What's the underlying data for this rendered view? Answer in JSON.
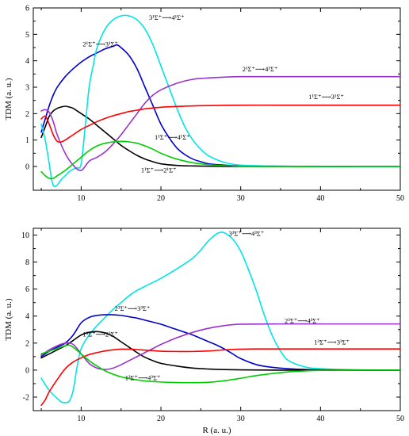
{
  "chart_data": [
    {
      "type": "line",
      "xlabel": "",
      "ylabel": "TDM (a. u.)",
      "xlim": [
        4,
        50
      ],
      "ylim": [
        -0.9,
        6
      ],
      "xticks": [
        "10",
        "20",
        "30",
        "40",
        "50"
      ],
      "yticks": [
        "0",
        "1",
        "2",
        "3",
        "4",
        "5",
        "6"
      ],
      "grid": false,
      "series": [
        {
          "id": "s1",
          "label": "1¹Σ⁺⟶2¹Σ⁺",
          "color": "#000000",
          "x": [
            5,
            5.5,
            6,
            6.5,
            7,
            7.5,
            8,
            8.5,
            9,
            10,
            11,
            12,
            13,
            14,
            15,
            16,
            17,
            18,
            19,
            20,
            22,
            24,
            26,
            28,
            30,
            35,
            40,
            45,
            50
          ],
          "y": [
            1.1,
            1.5,
            1.9,
            2.1,
            2.2,
            2.25,
            2.28,
            2.25,
            2.2,
            2.0,
            1.8,
            1.55,
            1.3,
            1.05,
            0.8,
            0.6,
            0.42,
            0.28,
            0.18,
            0.1,
            0.04,
            0.02,
            0.01,
            0,
            0,
            0,
            0,
            0,
            0
          ]
        },
        {
          "id": "s2",
          "label": "2¹Σ⁺⟶3¹Σ⁺",
          "color": "#0000cc",
          "x": [
            5,
            5.5,
            6,
            6.5,
            7,
            8,
            9,
            10,
            11,
            12,
            13,
            14,
            14.5,
            15,
            16,
            17,
            18,
            19,
            20,
            21,
            22,
            23,
            24,
            25,
            26,
            28,
            30,
            35,
            40,
            45,
            50
          ],
          "y": [
            1.3,
            1.8,
            2.3,
            2.7,
            3.0,
            3.4,
            3.7,
            3.95,
            4.15,
            4.3,
            4.45,
            4.55,
            4.6,
            4.5,
            4.2,
            3.7,
            3.0,
            2.3,
            1.6,
            1.1,
            0.7,
            0.45,
            0.28,
            0.18,
            0.1,
            0.05,
            0.02,
            0.01,
            0,
            0,
            0
          ]
        },
        {
          "id": "s3",
          "label": "3¹Σ⁺⟶4¹Σ⁺",
          "color": "#00e5e5",
          "x": [
            5,
            5.5,
            6,
            6.3,
            6.6,
            7,
            7.5,
            8,
            8.5,
            9,
            9.5,
            10,
            10.5,
            11,
            11.5,
            12,
            13,
            14,
            15,
            16,
            17,
            18,
            19,
            20,
            21,
            22,
            23,
            24,
            25,
            26,
            28,
            30,
            33,
            35,
            38,
            40,
            45,
            50
          ],
          "y": [
            1.6,
            1.0,
            0.1,
            -0.5,
            -0.75,
            -0.7,
            -0.5,
            -0.35,
            -0.2,
            -0.1,
            -0.05,
            0.1,
            1.5,
            3.0,
            3.8,
            4.5,
            5.2,
            5.55,
            5.7,
            5.7,
            5.55,
            5.2,
            4.6,
            3.8,
            3.0,
            2.2,
            1.5,
            1.0,
            0.65,
            0.4,
            0.15,
            0.05,
            0.02,
            0.01,
            0,
            0,
            0,
            0
          ]
        },
        {
          "id": "s4",
          "label": "2¹Σ⁺⟶4¹Σ⁺",
          "color": "#9933cc",
          "x": [
            5,
            5.5,
            6,
            6.5,
            7,
            8,
            9,
            10,
            11,
            12,
            13,
            14,
            15,
            16,
            17,
            18,
            19,
            20,
            22,
            24,
            26,
            28,
            30,
            35,
            40,
            45,
            50
          ],
          "y": [
            2.1,
            2.15,
            2.05,
            1.7,
            1.2,
            0.5,
            0.05,
            -0.15,
            0.2,
            0.35,
            0.55,
            0.85,
            1.2,
            1.6,
            2.0,
            2.4,
            2.7,
            2.9,
            3.15,
            3.3,
            3.35,
            3.38,
            3.4,
            3.4,
            3.4,
            3.4,
            3.4
          ]
        },
        {
          "id": "s5",
          "label": "1¹Σ⁺⟶3¹Σ⁺",
          "color": "#ff0000",
          "x": [
            5,
            5.5,
            6,
            6.5,
            7,
            7.5,
            8,
            9,
            10,
            11,
            12,
            13,
            14,
            15,
            16,
            17,
            18,
            20,
            22,
            25,
            30,
            35,
            40,
            45,
            50
          ],
          "y": [
            1.8,
            1.9,
            1.6,
            1.2,
            0.95,
            0.93,
            1.0,
            1.2,
            1.4,
            1.55,
            1.7,
            1.82,
            1.92,
            2.0,
            2.08,
            2.13,
            2.18,
            2.24,
            2.27,
            2.3,
            2.32,
            2.32,
            2.32,
            2.32,
            2.32
          ]
        },
        {
          "id": "s6",
          "label": "1¹Σ⁺⟶4¹Σ⁺",
          "color": "#00cc00",
          "x": [
            5,
            5.5,
            6,
            6.5,
            7,
            8,
            9,
            10,
            11,
            12,
            13,
            14,
            15,
            16,
            17,
            18,
            19,
            20,
            21,
            22,
            24,
            26,
            28,
            30,
            35,
            40,
            45,
            50
          ],
          "y": [
            -0.2,
            -0.35,
            -0.45,
            -0.45,
            -0.35,
            -0.15,
            0.1,
            0.35,
            0.6,
            0.78,
            0.88,
            0.93,
            0.95,
            0.93,
            0.88,
            0.78,
            0.65,
            0.5,
            0.38,
            0.28,
            0.14,
            0.07,
            0.03,
            0.01,
            0,
            0,
            0,
            0
          ]
        }
      ],
      "annotations": [
        {
          "text": "3¹Σ⁺⟶4¹Σ⁺",
          "x": 18.5,
          "y": 5.55
        },
        {
          "text": "2¹Σ⁺⟶3¹Σ⁺",
          "x": 10.2,
          "y": 4.55
        },
        {
          "text": "2¹Σ⁺⟶4¹Σ⁺",
          "x": 30.2,
          "y": 3.6
        },
        {
          "text": "1¹Σ⁺⟶3¹Σ⁺",
          "x": 38.5,
          "y": 2.55
        },
        {
          "text": "1¹Σ⁺⟶4¹Σ⁺",
          "x": 19.2,
          "y": 1.02
        },
        {
          "text": "1¹Σ⁺⟶2¹Σ⁺",
          "x": 17.5,
          "y": -0.22
        }
      ]
    },
    {
      "type": "line",
      "xlabel": "R (a. u.)",
      "ylabel": "TDM (a. u.)",
      "xlim": [
        4,
        50
      ],
      "ylim": [
        -3,
        10.5
      ],
      "xticks": [
        "10",
        "20",
        "30",
        "40",
        "50"
      ],
      "yticks": [
        "-2",
        "0",
        "2",
        "4",
        "6",
        "8",
        "10"
      ],
      "grid": false,
      "series": [
        {
          "id": "t1",
          "label": "3³Σ⁺⟶4³Σ⁺",
          "color": "#00e5e5",
          "x": [
            5,
            6,
            7,
            7.5,
            8,
            8.5,
            9,
            9.5,
            10,
            11,
            12,
            13,
            14,
            15,
            16,
            17,
            18,
            20,
            22,
            24,
            25,
            26,
            27,
            27.5,
            28,
            29,
            30,
            31,
            32,
            33,
            34,
            35,
            36,
            38,
            40,
            45,
            50
          ],
          "y": [
            -0.6,
            -1.5,
            -2.1,
            -2.35,
            -2.4,
            -2.3,
            -1.5,
            0.3,
            1.6,
            2.6,
            3.3,
            3.9,
            4.5,
            5.0,
            5.5,
            5.9,
            6.2,
            6.8,
            7.5,
            8.3,
            8.9,
            9.6,
            10.1,
            10.2,
            10.15,
            9.7,
            8.8,
            7.4,
            5.8,
            4.0,
            2.5,
            1.4,
            0.7,
            0.25,
            0.1,
            0.02,
            0
          ]
        },
        {
          "id": "t2",
          "label": "2³Σ⁺⟶3³Σ⁺",
          "color": "#0000cc",
          "x": [
            5,
            6,
            7,
            8,
            9,
            10,
            11,
            12,
            13,
            14,
            15,
            16,
            17,
            18,
            19,
            20,
            21,
            22,
            23,
            24,
            25,
            26,
            27,
            28,
            29,
            30,
            32,
            34,
            36,
            38,
            40,
            45,
            50
          ],
          "y": [
            1.0,
            1.4,
            1.7,
            2.0,
            2.6,
            3.5,
            3.9,
            4.05,
            4.1,
            4.1,
            4.05,
            3.95,
            3.85,
            3.7,
            3.55,
            3.4,
            3.2,
            3.0,
            2.8,
            2.6,
            2.35,
            2.1,
            1.85,
            1.55,
            1.2,
            0.85,
            0.4,
            0.2,
            0.1,
            0.05,
            0.02,
            0,
            0
          ]
        },
        {
          "id": "t3",
          "label": "1³Σ⁺⟶2³Σ⁺",
          "color": "#000000",
          "x": [
            5,
            6,
            7,
            8,
            9,
            10,
            11,
            12,
            13,
            14,
            15,
            16,
            17,
            18,
            19,
            20,
            22,
            24,
            26,
            28,
            30,
            35,
            40,
            45,
            50
          ],
          "y": [
            0.9,
            1.2,
            1.5,
            1.8,
            2.2,
            2.6,
            2.8,
            2.85,
            2.75,
            2.5,
            2.1,
            1.7,
            1.3,
            0.95,
            0.7,
            0.5,
            0.3,
            0.15,
            0.08,
            0.04,
            0.02,
            0,
            0,
            0,
            0
          ]
        },
        {
          "id": "t4",
          "label": "2³Σ⁺⟶4³Σ⁺",
          "color": "#9933cc",
          "x": [
            5,
            6,
            7,
            8,
            9,
            10,
            11,
            12,
            13,
            14,
            15,
            16,
            17,
            18,
            19,
            20,
            22,
            24,
            26,
            28,
            30,
            35,
            40,
            45,
            50
          ],
          "y": [
            1.1,
            1.5,
            1.8,
            2.0,
            1.9,
            1.2,
            0.5,
            0.15,
            0.05,
            0.15,
            0.4,
            0.7,
            1.0,
            1.3,
            1.6,
            1.9,
            2.4,
            2.8,
            3.1,
            3.3,
            3.4,
            3.42,
            3.42,
            3.42,
            3.42
          ]
        },
        {
          "id": "t5",
          "label": "1³Σ⁺⟶3³Σ⁺",
          "color": "#ff0000",
          "x": [
            5,
            5.5,
            6,
            7,
            8,
            9,
            10,
            11,
            12,
            13,
            14,
            15,
            16,
            17,
            18,
            19,
            20,
            22,
            24,
            26,
            28,
            30,
            32,
            35,
            40,
            45,
            50
          ],
          "y": [
            -2.6,
            -2.2,
            -1.6,
            -0.7,
            0.1,
            0.6,
            0.9,
            1.15,
            1.3,
            1.42,
            1.5,
            1.55,
            1.55,
            1.52,
            1.48,
            1.44,
            1.4,
            1.38,
            1.38,
            1.42,
            1.5,
            1.55,
            1.57,
            1.57,
            1.57,
            1.57,
            1.57
          ]
        },
        {
          "id": "t6",
          "label": "1³Σ⁺⟶4³Σ⁺",
          "color": "#00cc00",
          "x": [
            5,
            6,
            7,
            8,
            8.5,
            9,
            10,
            11,
            12,
            13,
            14,
            15,
            16,
            17,
            18,
            20,
            22,
            24,
            26,
            28,
            30,
            32,
            34,
            36,
            38,
            40,
            45,
            50
          ],
          "y": [
            1.2,
            1.4,
            1.6,
            1.8,
            1.85,
            1.7,
            1.2,
            0.7,
            0.3,
            -0.05,
            -0.3,
            -0.5,
            -0.62,
            -0.72,
            -0.8,
            -0.88,
            -0.92,
            -0.93,
            -0.9,
            -0.78,
            -0.6,
            -0.4,
            -0.25,
            -0.13,
            -0.06,
            -0.02,
            0,
            0
          ]
        }
      ],
      "annotations": [
        {
          "text": "3³Σ⁺⟶4³Σ⁺",
          "x": 28.5,
          "y": 9.95
        },
        {
          "text": "2³Σ⁺⟶3³Σ⁺",
          "x": 14.2,
          "y": 4.4
        },
        {
          "text": "2³Σ⁺⟶4³Σ⁺",
          "x": 35.5,
          "y": 3.5
        },
        {
          "text": "1³Σ⁺⟶2³Σ⁺",
          "x": 10.2,
          "y": 2.5
        },
        {
          "text": "1³Σ⁺⟶3³Σ⁺",
          "x": 39.2,
          "y": 1.9
        },
        {
          "text": "1³Σ⁺⟶4³Σ⁺",
          "x": 15.5,
          "y": -0.75
        }
      ]
    }
  ]
}
